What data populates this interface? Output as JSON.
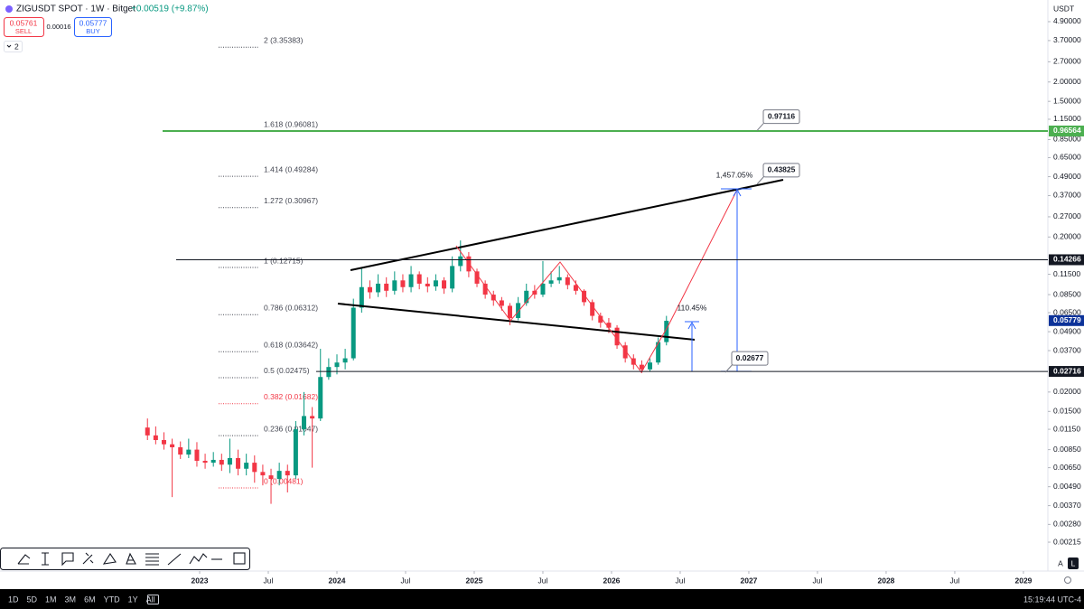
{
  "header": {
    "symbol": "ZIGUSDT SPOT · 1W · Bitget",
    "change": "+0.00519 (+9.87%)",
    "sell_price": "0.05761",
    "sell": "SELL",
    "spread": "0.00016",
    "buy_price": "0.05777",
    "buy": "BUY",
    "indicators": "2"
  },
  "chart_data": {
    "type": "candlestick",
    "currency": "USDT",
    "log_scale": true,
    "up_color": "#089981",
    "down_color": "#f23645",
    "x": [
      2022.62,
      2022.68,
      2022.74,
      2022.8,
      2022.86,
      2022.92,
      2022.98,
      2023.04,
      2023.1,
      2023.16,
      2023.22,
      2023.28,
      2023.34,
      2023.4,
      2023.46,
      2023.52,
      2023.58,
      2023.64,
      2023.7,
      2023.76,
      2023.82,
      2023.88,
      2023.94,
      2024.0,
      2024.06,
      2024.12,
      2024.18,
      2024.24,
      2024.3,
      2024.36,
      2024.42,
      2024.48,
      2024.54,
      2024.6,
      2024.66,
      2024.72,
      2024.78,
      2024.84,
      2024.9,
      2024.96,
      2025.02,
      2025.08,
      2025.14,
      2025.2,
      2025.26,
      2025.32,
      2025.38,
      2025.44,
      2025.5,
      2025.56,
      2025.62,
      2025.68,
      2025.74,
      2025.8,
      2025.86,
      2025.92,
      2025.98,
      2026.04,
      2026.1,
      2026.16,
      2026.22,
      2026.28,
      2026.34,
      2026.4
    ],
    "open": [
      0.0118,
      0.0105,
      0.0098,
      0.0092,
      0.0088,
      0.0079,
      0.0085,
      0.0072,
      0.007,
      0.0073,
      0.0068,
      0.0075,
      0.0064,
      0.007,
      0.0061,
      0.0058,
      0.0055,
      0.0062,
      0.0058,
      0.0115,
      0.014,
      0.0135,
      0.025,
      0.029,
      0.031,
      0.033,
      0.07,
      0.095,
      0.088,
      0.1,
      0.09,
      0.105,
      0.095,
      0.115,
      0.1,
      0.096,
      0.105,
      0.093,
      0.13,
      0.15,
      0.12,
      0.1,
      0.085,
      0.078,
      0.072,
      0.06,
      0.075,
      0.09,
      0.085,
      0.1,
      0.105,
      0.11,
      0.098,
      0.09,
      0.076,
      0.062,
      0.056,
      0.052,
      0.04,
      0.033,
      0.03,
      0.028,
      0.031,
      0.042
    ],
    "high": [
      0.0135,
      0.012,
      0.011,
      0.01,
      0.0096,
      0.01,
      0.0095,
      0.008,
      0.0082,
      0.008,
      0.01,
      0.0085,
      0.008,
      0.0078,
      0.0068,
      0.0064,
      0.007,
      0.0068,
      0.013,
      0.02,
      0.016,
      0.038,
      0.033,
      0.035,
      0.038,
      0.08,
      0.125,
      0.105,
      0.115,
      0.11,
      0.12,
      0.115,
      0.13,
      0.12,
      0.11,
      0.115,
      0.11,
      0.15,
      0.19,
      0.16,
      0.125,
      0.105,
      0.09,
      0.082,
      0.075,
      0.082,
      0.1,
      0.098,
      0.14,
      0.12,
      0.13,
      0.115,
      0.105,
      0.092,
      0.079,
      0.065,
      0.06,
      0.054,
      0.042,
      0.035,
      0.032,
      0.033,
      0.045,
      0.062
    ],
    "low": [
      0.0098,
      0.0092,
      0.0085,
      0.0042,
      0.0074,
      0.0075,
      0.0066,
      0.0064,
      0.0066,
      0.0062,
      0.006,
      0.0058,
      0.0058,
      0.0052,
      0.005,
      0.0038,
      0.005,
      0.0045,
      0.0055,
      0.0105,
      0.0065,
      0.013,
      0.024,
      0.026,
      0.028,
      0.032,
      0.065,
      0.08,
      0.082,
      0.082,
      0.085,
      0.088,
      0.088,
      0.092,
      0.088,
      0.09,
      0.086,
      0.088,
      0.12,
      0.11,
      0.095,
      0.08,
      0.072,
      0.067,
      0.054,
      0.058,
      0.072,
      0.08,
      0.082,
      0.095,
      0.1,
      0.092,
      0.085,
      0.072,
      0.058,
      0.052,
      0.048,
      0.038,
      0.031,
      0.028,
      0.0265,
      0.027,
      0.03,
      0.04
    ],
    "close": [
      0.0105,
      0.0098,
      0.0092,
      0.0088,
      0.0079,
      0.0085,
      0.0072,
      0.007,
      0.0073,
      0.0068,
      0.0075,
      0.0064,
      0.007,
      0.0061,
      0.0058,
      0.0055,
      0.0062,
      0.0058,
      0.0115,
      0.014,
      0.0135,
      0.025,
      0.029,
      0.031,
      0.033,
      0.07,
      0.095,
      0.088,
      0.1,
      0.09,
      0.105,
      0.095,
      0.115,
      0.1,
      0.096,
      0.105,
      0.093,
      0.13,
      0.15,
      0.12,
      0.1,
      0.085,
      0.078,
      0.072,
      0.06,
      0.075,
      0.09,
      0.085,
      0.1,
      0.105,
      0.11,
      0.098,
      0.09,
      0.076,
      0.062,
      0.056,
      0.052,
      0.04,
      0.033,
      0.03,
      0.028,
      0.031,
      0.042,
      0.0576
    ],
    "xlim": [
      2021.546,
      2029.178
    ],
    "xticks": [
      {
        "value": 2023,
        "label": "2023"
      },
      {
        "value": 2023.5,
        "label": "Jul"
      },
      {
        "value": 2024,
        "label": "2024"
      },
      {
        "value": 2024.5,
        "label": "Jul"
      },
      {
        "value": 2025,
        "label": "2025"
      },
      {
        "value": 2025.5,
        "label": "Jul"
      },
      {
        "value": 2026,
        "label": "2026"
      },
      {
        "value": 2026.5,
        "label": "Jul"
      },
      {
        "value": 2027,
        "label": "2027"
      },
      {
        "value": 2027.5,
        "label": "Jul"
      },
      {
        "value": 2028,
        "label": "2028"
      },
      {
        "value": 2028.5,
        "label": "Jul"
      },
      {
        "value": 2029,
        "label": "2029"
      }
    ],
    "ylim": [
      0.0014,
      6.76
    ],
    "yticks": [
      {
        "value": 4.9,
        "label": "4.90000"
      },
      {
        "value": 3.7,
        "label": "3.70000"
      },
      {
        "value": 2.7,
        "label": "2.70000"
      },
      {
        "value": 2,
        "label": "2.00000"
      },
      {
        "value": 1.5,
        "label": "1.50000"
      },
      {
        "value": 1.15,
        "label": "1.15000"
      },
      {
        "value": 0.85,
        "label": "0.85000"
      },
      {
        "value": 0.65,
        "label": "0.65000"
      },
      {
        "value": 0.49,
        "label": "0.49000"
      },
      {
        "value": 0.37,
        "label": "0.37000"
      },
      {
        "value": 0.27,
        "label": "0.27000"
      },
      {
        "value": 0.2,
        "label": "0.20000"
      },
      {
        "value": 0.115,
        "label": "0.11500"
      },
      {
        "value": 0.085,
        "label": "0.08500"
      },
      {
        "value": 0.065,
        "label": "0.06500"
      },
      {
        "value": 0.049,
        "label": "0.04900"
      },
      {
        "value": 0.037,
        "label": "0.03700"
      },
      {
        "value": 0.02,
        "label": "0.02000"
      },
      {
        "value": 0.015,
        "label": "0.01500"
      },
      {
        "value": 0.0115,
        "label": "0.01150"
      },
      {
        "value": 0.0085,
        "label": "0.00850"
      },
      {
        "value": 0.0065,
        "label": "0.00650"
      },
      {
        "value": 0.0049,
        "label": "0.00490"
      },
      {
        "value": 0.0037,
        "label": "0.00370"
      },
      {
        "value": 0.0028,
        "label": "0.00280"
      },
      {
        "value": 0.00215,
        "label": "0.00215"
      }
    ],
    "fib_levels": [
      {
        "value": 3.35383,
        "label": "2 (3.35383)",
        "color": "#434651"
      },
      {
        "value": 0.96081,
        "label": "1.618 (0.96081)",
        "color": "#434651"
      },
      {
        "value": 0.49284,
        "label": "1.414 (0.49284)",
        "color": "#434651"
      },
      {
        "value": 0.30967,
        "label": "1.272 (0.30967)",
        "color": "#434651"
      },
      {
        "value": 0.12715,
        "label": "1 (0.12715)",
        "color": "#434651"
      },
      {
        "value": 0.06312,
        "label": "0.786 (0.06312)",
        "color": "#434651"
      },
      {
        "value": 0.03642,
        "label": "0.618 (0.03642)",
        "color": "#434651"
      },
      {
        "value": 0.02475,
        "label": "0.5 (0.02475)",
        "color": "#434651"
      },
      {
        "value": 0.01682,
        "label": "0.382 (0.01682)",
        "color": "#f23645"
      },
      {
        "value": 0.01047,
        "label": "0.236 (0.01047)",
        "color": "#434651"
      },
      {
        "value": 0.00481,
        "label": "0 (0.00481)",
        "color": "#f23645"
      }
    ],
    "price_lines": [
      {
        "value": 0.96564,
        "color": "#4caf50"
      },
      {
        "value": 0.14266,
        "color": "#131722"
      },
      {
        "value": 0.05779,
        "color": "#0c3299"
      },
      {
        "value": 0.02716,
        "color": "#131722"
      }
    ],
    "callouts": [
      0.97116,
      0.43825,
      0.02677
    ],
    "percent_labels": [
      "1,457.05%",
      "110.45%"
    ]
  },
  "bottom_bar": {
    "ranges": [
      "1D",
      "5D",
      "1M",
      "3M",
      "6M",
      "YTD",
      "1Y",
      "All"
    ],
    "clock": "15:19:44 UTC-4",
    "scale_buttons": [
      "A",
      "L"
    ]
  }
}
